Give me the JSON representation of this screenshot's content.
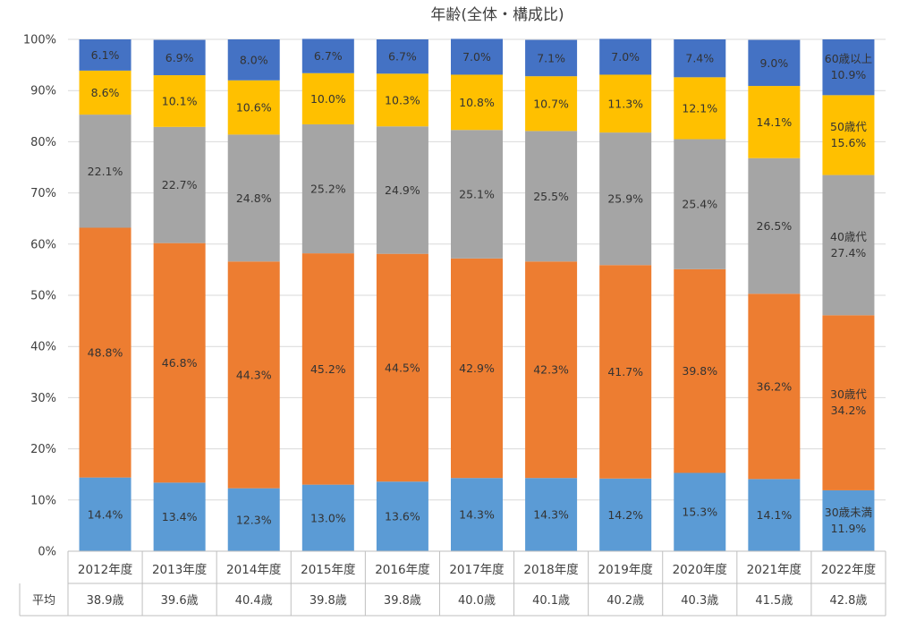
{
  "chart_data": {
    "type": "bar",
    "stacked": true,
    "percent_stacked": true,
    "title": "年齢(全体・構成比)",
    "categories": [
      "2012年度",
      "2013年度",
      "2014年度",
      "2015年度",
      "2016年度",
      "2017年度",
      "2018年度",
      "2019年度",
      "2020年度",
      "2021年度",
      "2022年度"
    ],
    "yticks": [
      "0%",
      "10%",
      "20%",
      "30%",
      "40%",
      "50%",
      "60%",
      "70%",
      "80%",
      "90%",
      "100%"
    ],
    "ylim": [
      0,
      100
    ],
    "grid": true,
    "series": [
      {
        "name": "30歳未満",
        "color": "#5b9bd5",
        "values": [
          14.4,
          13.4,
          12.3,
          13.0,
          13.6,
          14.3,
          14.3,
          14.2,
          15.3,
          14.1,
          11.9
        ],
        "labels": [
          "14.4%",
          "13.4%",
          "12.3%",
          "13.0%",
          "13.6%",
          "14.3%",
          "14.3%",
          "14.2%",
          "15.3%",
          "14.1%",
          "11.9%"
        ]
      },
      {
        "name": "30歳代",
        "color": "#ed7d31",
        "values": [
          48.8,
          46.8,
          44.3,
          45.2,
          44.5,
          42.9,
          42.3,
          41.7,
          39.8,
          36.2,
          34.2
        ],
        "labels": [
          "48.8%",
          "46.8%",
          "44.3%",
          "45.2%",
          "44.5%",
          "42.9%",
          "42.3%",
          "41.7%",
          "39.8%",
          "36.2%",
          "34.2%"
        ]
      },
      {
        "name": "40歳代",
        "color": "#a5a5a5",
        "values": [
          22.1,
          22.7,
          24.8,
          25.2,
          24.9,
          25.1,
          25.5,
          25.9,
          25.4,
          26.5,
          27.4
        ],
        "labels": [
          "22.1%",
          "22.7%",
          "24.8%",
          "25.2%",
          "24.9%",
          "25.1%",
          "25.5%",
          "25.9%",
          "25.4%",
          "26.5%",
          "27.4%"
        ]
      },
      {
        "name": "50歳代",
        "color": "#ffc000",
        "values": [
          8.6,
          10.1,
          10.6,
          10.0,
          10.3,
          10.8,
          10.7,
          11.3,
          12.1,
          14.1,
          15.6
        ],
        "labels": [
          "8.6%",
          "10.1%",
          "10.6%",
          "10.0%",
          "10.3%",
          "10.8%",
          "10.7%",
          "11.3%",
          "12.1%",
          "14.1%",
          "15.6%"
        ]
      },
      {
        "name": "60歳以上",
        "color": "#4472c4",
        "values": [
          6.1,
          6.9,
          8.0,
          6.7,
          6.7,
          7.0,
          7.1,
          7.0,
          7.4,
          9.0,
          10.9
        ],
        "labels": [
          "6.1%",
          "6.9%",
          "8.0%",
          "6.7%",
          "6.7%",
          "7.0%",
          "7.1%",
          "7.0%",
          "7.4%",
          "9.0%",
          "10.9%"
        ]
      }
    ],
    "average_row": {
      "label": "平均",
      "values": [
        "38.9歳",
        "39.6歳",
        "40.4歳",
        "39.8歳",
        "39.8歳",
        "40.0歳",
        "40.1歳",
        "40.2歳",
        "40.3歳",
        "41.5歳",
        "42.8歳"
      ]
    }
  }
}
